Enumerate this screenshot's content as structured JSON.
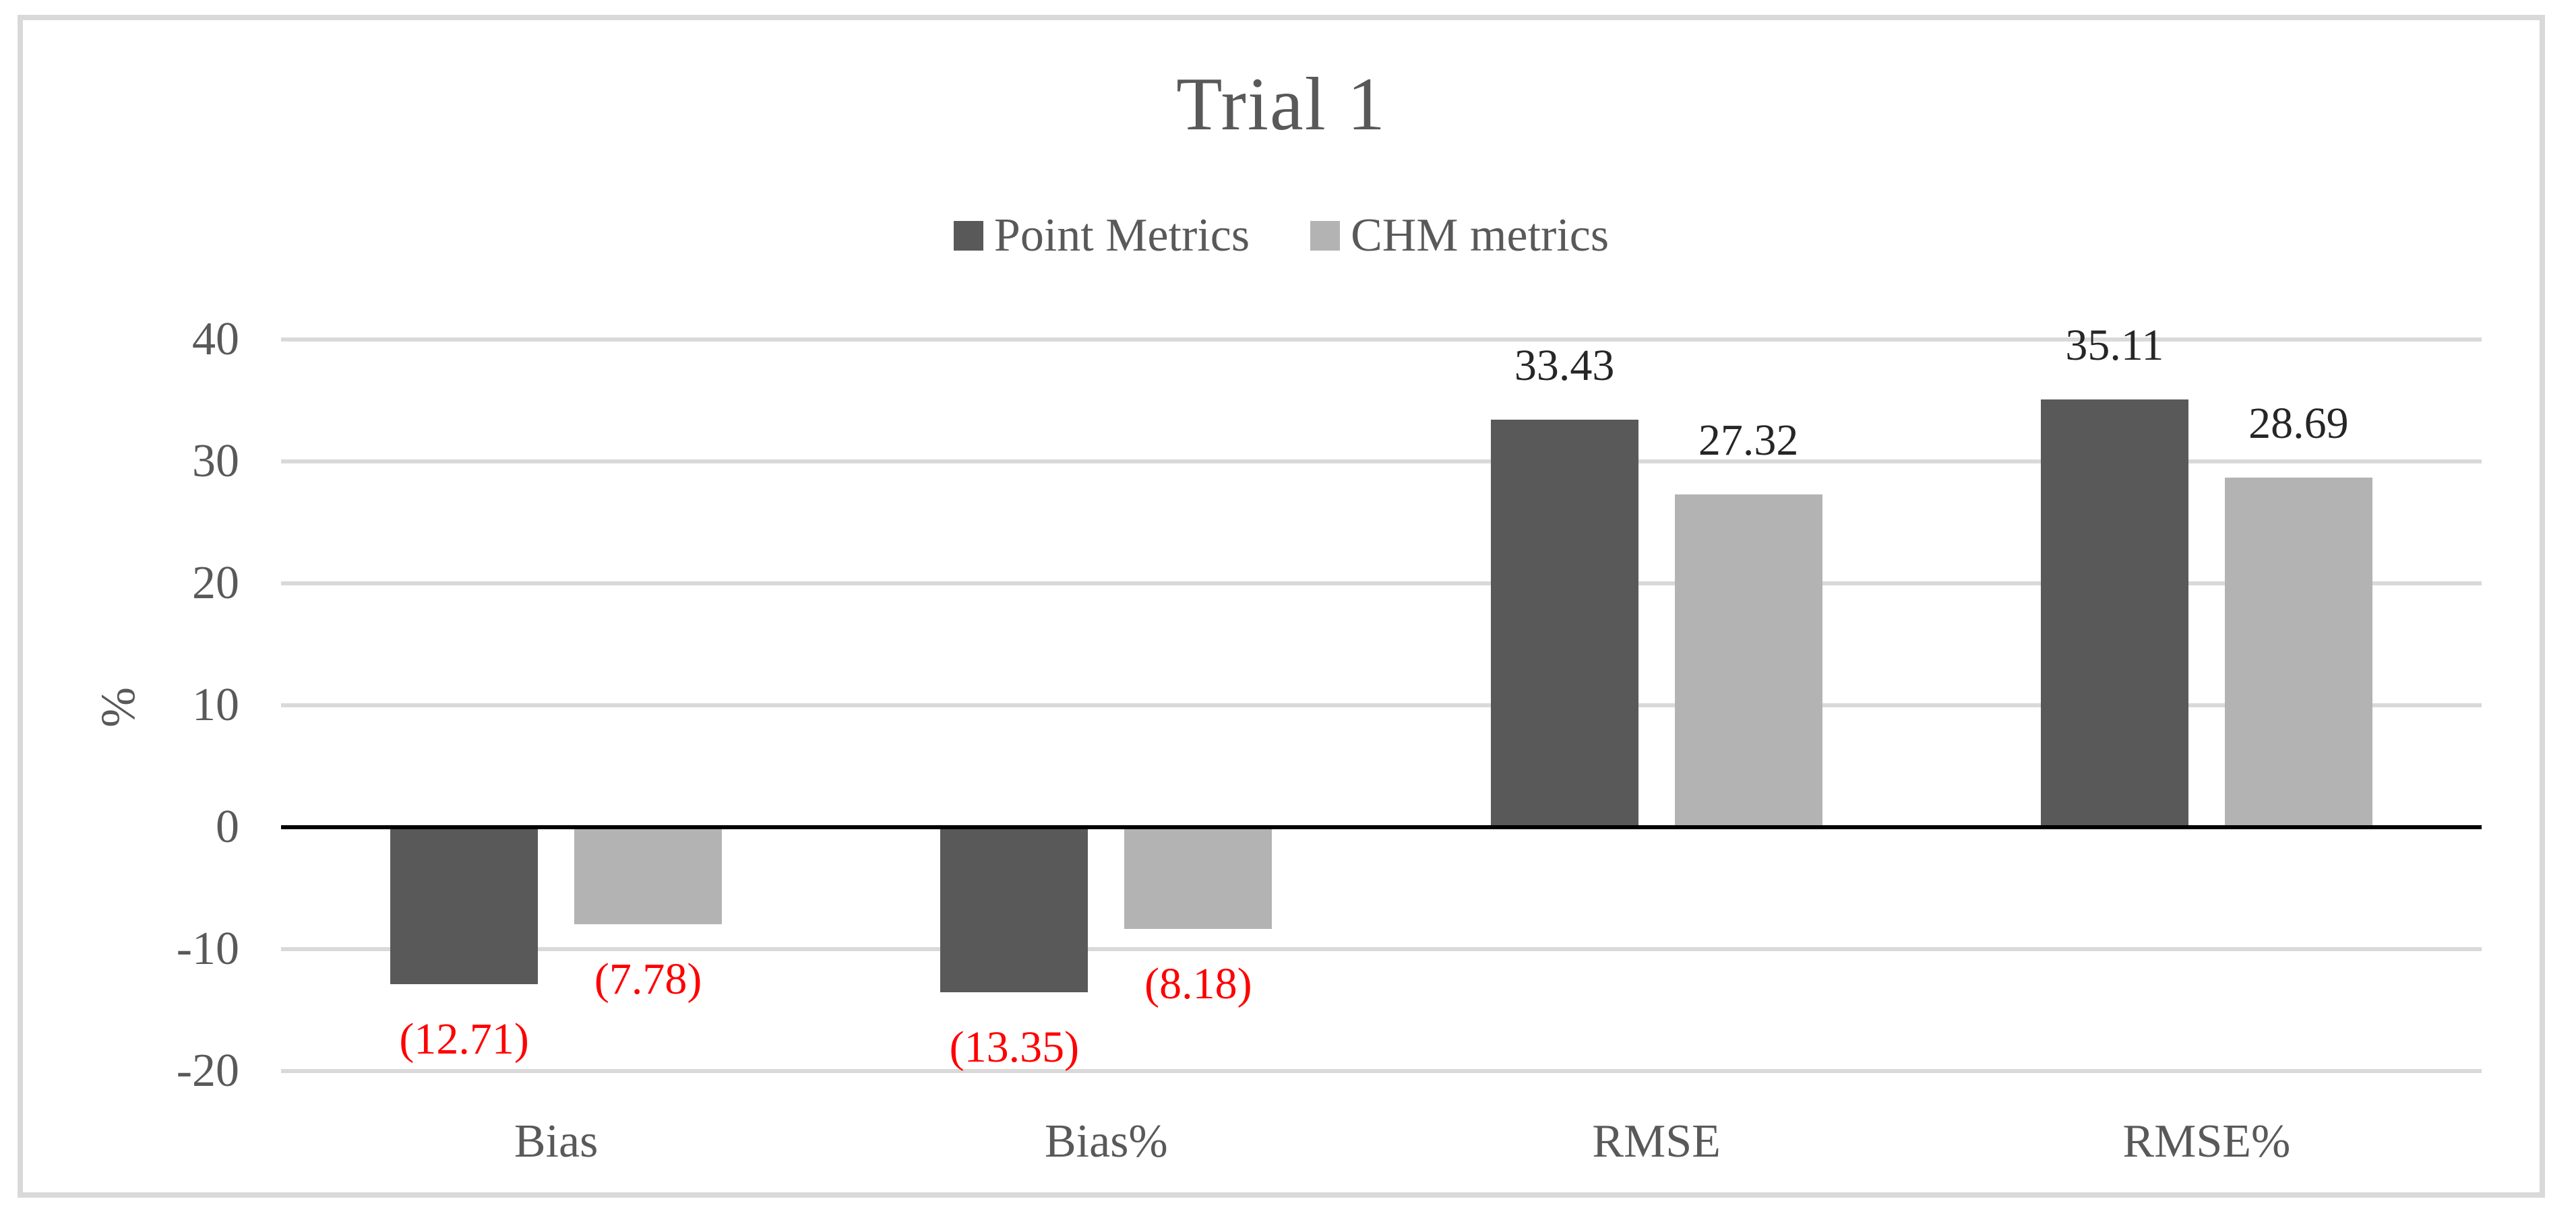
{
  "figure": {
    "background": "#ffffff",
    "frame_border_color": "#d9d9d9"
  },
  "chart_data": {
    "type": "bar",
    "title": "Trial 1",
    "categories": [
      "Bias",
      "Bias%",
      "RMSE",
      "RMSE%"
    ],
    "series": [
      {
        "name": "Point Metrics",
        "color": "#595959",
        "values": [
          -12.71,
          -13.35,
          33.43,
          35.11
        ],
        "data_labels": [
          "(12.71)",
          "(13.35)",
          "33.43",
          "35.11"
        ]
      },
      {
        "name": "CHM metrics",
        "color": "#b3b3b3",
        "values": [
          -7.78,
          -8.18,
          27.32,
          28.69
        ],
        "data_labels": [
          "(7.78)",
          "(8.18)",
          "27.32",
          "28.69"
        ]
      }
    ],
    "xlabel": "",
    "ylabel": "%",
    "ylim": [
      -20,
      40
    ],
    "yticks": [
      40,
      30,
      20,
      10,
      0,
      -10,
      -20
    ],
    "ytick_labels": [
      "40",
      "30",
      "20",
      "10",
      "0",
      "-10",
      "-20"
    ],
    "legend_position": "top-center",
    "grid": "horizontal",
    "gridline_color": "#d9d9d9",
    "axis_line_color": "#000000",
    "text_color": "#595959",
    "title_color": "#595959",
    "positive_label_color": "#262626",
    "negative_label_color": "#ff0000"
  }
}
